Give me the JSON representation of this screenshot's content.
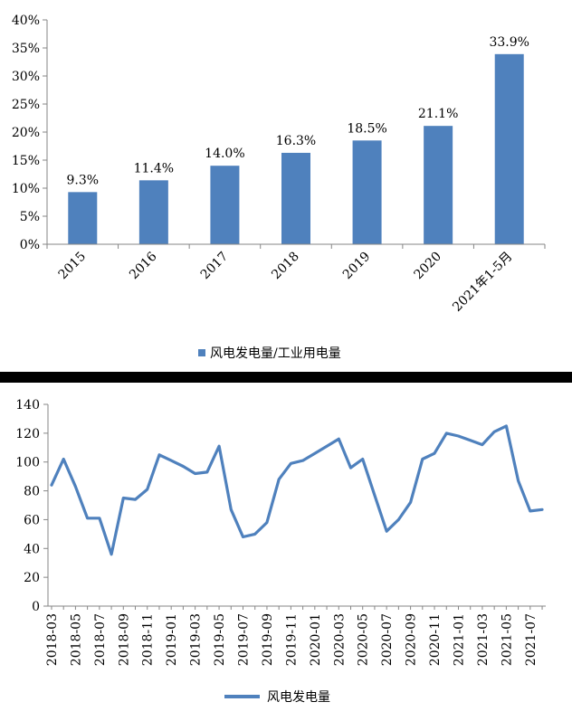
{
  "chart_data": [
    {
      "type": "bar",
      "categories": [
        "2015",
        "2016",
        "2017",
        "2018",
        "2019",
        "2020",
        "2021年1-5月"
      ],
      "values": [
        9.3,
        11.4,
        14.0,
        16.3,
        18.5,
        21.1,
        33.9
      ],
      "data_labels": [
        "9.3%",
        "11.4%",
        "14.0%",
        "16.3%",
        "18.5%",
        "21.1%",
        "33.9%"
      ],
      "series_name": "风电发电量/工业用电量",
      "yticks": [
        "0%",
        "5%",
        "10%",
        "15%",
        "20%",
        "25%",
        "30%",
        "35%",
        "40%"
      ],
      "ylim": [
        0,
        40
      ],
      "color": "#4f81bd",
      "legend_position": "bottom",
      "grid": false
    },
    {
      "type": "line",
      "x": [
        "2018-03",
        "2018-04",
        "2018-05",
        "2018-06",
        "2018-07",
        "2018-08",
        "2018-09",
        "2018-10",
        "2018-11",
        "2018-12",
        "2019-01",
        "2019-02",
        "2019-03",
        "2019-04",
        "2019-05",
        "2019-06",
        "2019-07",
        "2019-08",
        "2019-09",
        "2019-10",
        "2019-11",
        "2019-12",
        "2020-01",
        "2020-02",
        "2020-03",
        "2020-04",
        "2020-05",
        "2020-06",
        "2020-07",
        "2020-08",
        "2020-09",
        "2020-10",
        "2020-11",
        "2020-12",
        "2021-01",
        "2021-02",
        "2021-03",
        "2021-04",
        "2021-05",
        "2021-06",
        "2021-07",
        "2021-08"
      ],
      "values": [
        84,
        102,
        83,
        61,
        61,
        36,
        75,
        74,
        81,
        105,
        101,
        97,
        92,
        93,
        111,
        67,
        48,
        50,
        58,
        88,
        99,
        101,
        106,
        111,
        116,
        96,
        102,
        77,
        52,
        60,
        72,
        102,
        106,
        120,
        118,
        115,
        112,
        121,
        125,
        87,
        66,
        67
      ],
      "xticks": [
        "2018-03",
        "2018-05",
        "2018-07",
        "2018-09",
        "2018-11",
        "2019-01",
        "2019-03",
        "2019-05",
        "2019-07",
        "2019-09",
        "2019-11",
        "2020-01",
        "2020-03",
        "2020-05",
        "2020-07",
        "2020-09",
        "2020-11",
        "2021-01",
        "2021-03",
        "2021-05",
        "2021-07"
      ],
      "yticks": [
        "0",
        "20",
        "40",
        "60",
        "80",
        "100",
        "120",
        "140"
      ],
      "ylim": [
        0,
        140
      ],
      "series_name": "风电发电量",
      "color": "#4f81bd",
      "legend_position": "bottom",
      "grid": false
    }
  ]
}
